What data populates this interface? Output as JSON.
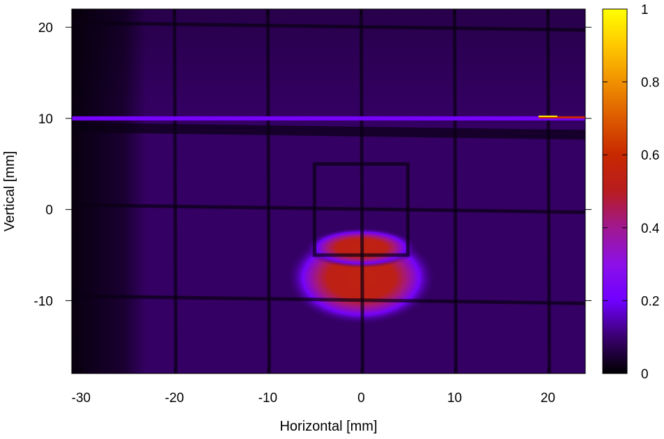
{
  "chart_data": {
    "type": "heatmap",
    "title": "",
    "xlabel": "Horizontal [mm]",
    "ylabel": "Vertical [mm]",
    "xlim": [
      -31,
      24
    ],
    "ylim": [
      -18,
      22
    ],
    "x_ticks": [
      -30,
      -20,
      -10,
      0,
      10,
      20
    ],
    "y_ticks": [
      -10,
      0,
      10,
      20
    ],
    "colorbar": {
      "range": [
        0,
        1
      ],
      "ticks": [
        0,
        0.2,
        0.4,
        0.6,
        0.8,
        1
      ],
      "tick_labels": [
        "0",
        "0.2",
        "0.4",
        "0.6",
        "0.8",
        "1"
      ],
      "colormap": [
        {
          "v": 0.0,
          "color": "#000000"
        },
        {
          "v": 0.1,
          "color": "#3a006e"
        },
        {
          "v": 0.2,
          "color": "#7000ff"
        },
        {
          "v": 0.3,
          "color": "#8c10e8"
        },
        {
          "v": 0.4,
          "color": "#a01890"
        },
        {
          "v": 0.5,
          "color": "#b81c20"
        },
        {
          "v": 0.6,
          "color": "#c82800"
        },
        {
          "v": 0.7,
          "color": "#dc5a00"
        },
        {
          "v": 0.8,
          "color": "#f09000"
        },
        {
          "v": 0.9,
          "color": "#ffc800"
        },
        {
          "v": 1.0,
          "color": "#ffff00"
        }
      ]
    },
    "background_level": 0.09,
    "features": {
      "hot_spot": {
        "center": [
          0,
          -7.5
        ],
        "peak": 0.55
      },
      "grid_lines_x": [
        -20,
        -10,
        0,
        10,
        20
      ],
      "grid_lines_y": [
        -10,
        0,
        8.5,
        20
      ],
      "bright_band_y": 10,
      "frame_x": [
        -5,
        5
      ],
      "frame_y": [
        -5,
        5
      ]
    }
  }
}
